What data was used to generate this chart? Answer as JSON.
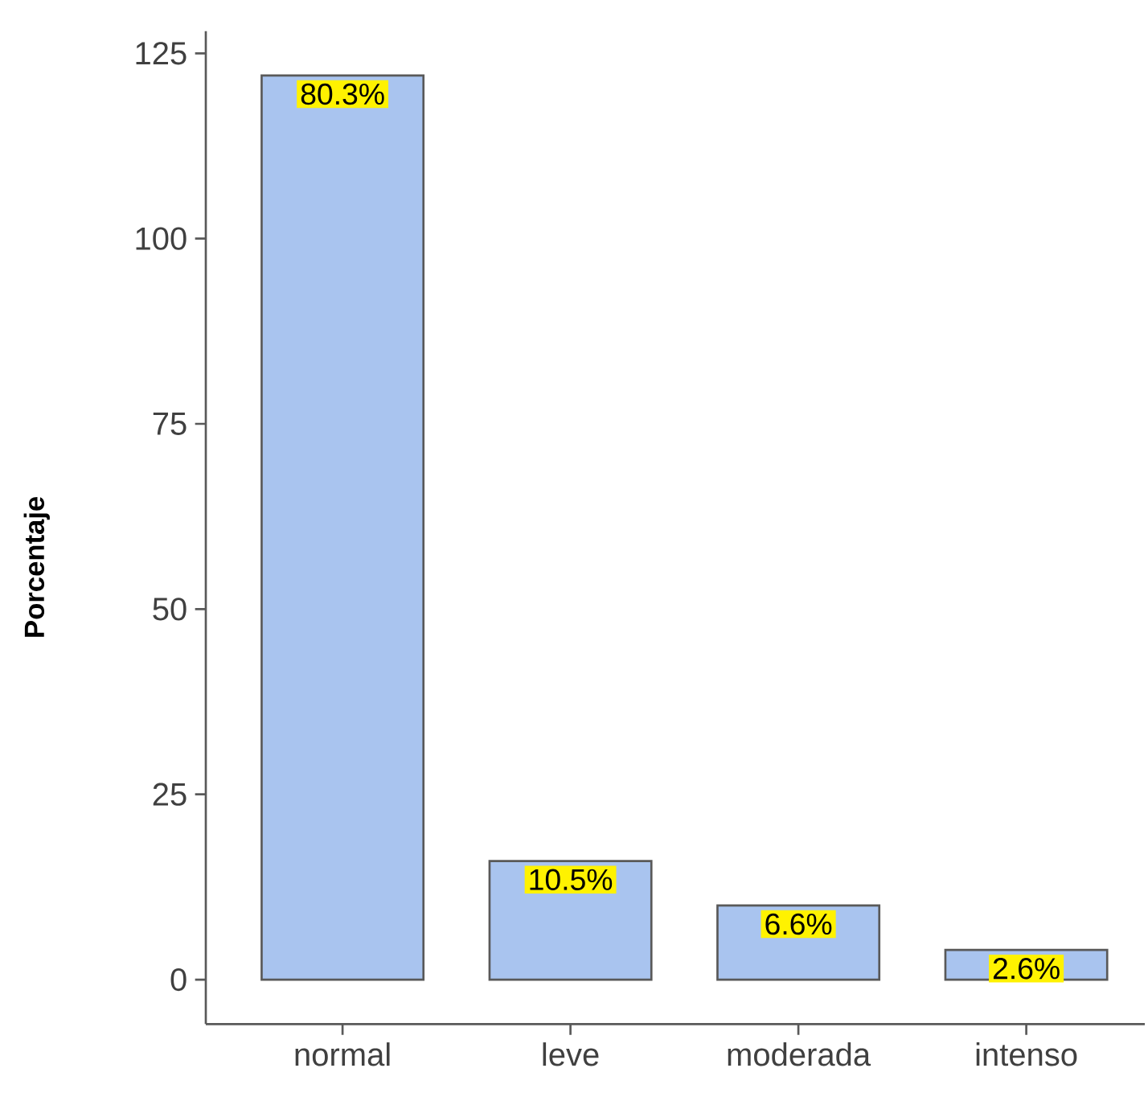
{
  "chart_data": {
    "type": "bar",
    "ylabel": "Porcentaje",
    "categories": [
      "normal",
      "leve",
      "moderada",
      "intenso"
    ],
    "values": [
      122,
      16,
      10,
      4
    ],
    "annotations": [
      {
        "text": "80.3%",
        "x": "normal",
        "y": 122
      },
      {
        "text": "10.5%",
        "x": "leve",
        "y": 16
      },
      {
        "text": "6.6%",
        "x": "moderada",
        "y": 10
      },
      {
        "text": "2.6%",
        "x": "intenso",
        "y": 4
      }
    ],
    "color": "#a9c4ef",
    "ylim": [
      -6,
      128
    ],
    "yticks": [
      0,
      25,
      50,
      75,
      100,
      125
    ],
    "grid": false
  }
}
